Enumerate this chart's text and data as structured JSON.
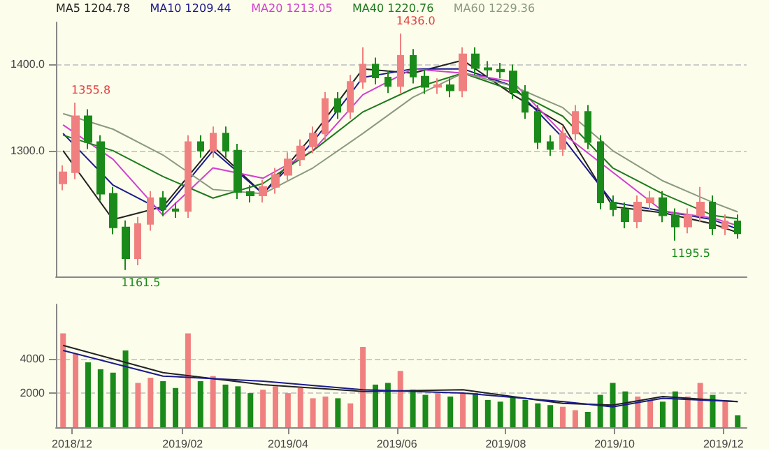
{
  "chart_data": [
    {
      "type": "candlestick",
      "x": [
        "2018-11-26",
        "2018-12-03",
        "2018-12-10",
        "2018-12-17",
        "2018-12-24",
        "2018-12-31",
        "2019-01-07",
        "2019-01-14",
        "2019-01-21",
        "2019-01-28",
        "2019-02-04",
        "2019-02-11",
        "2019-02-18",
        "2019-02-25",
        "2019-03-04",
        "2019-03-11",
        "2019-03-18",
        "2019-03-25",
        "2019-04-01",
        "2019-04-08",
        "2019-04-15",
        "2019-04-22",
        "2019-04-29",
        "2019-05-06",
        "2019-05-13",
        "2019-05-20",
        "2019-05-27",
        "2019-06-03",
        "2019-06-10",
        "2019-06-17",
        "2019-06-24",
        "2019-07-01",
        "2019-07-08",
        "2019-07-15",
        "2019-07-22",
        "2019-07-29",
        "2019-08-05",
        "2019-08-12",
        "2019-08-19",
        "2019-08-26",
        "2019-09-02",
        "2019-09-09",
        "2019-09-16",
        "2019-09-23",
        "2019-09-30",
        "2019-10-07",
        "2019-10-14",
        "2019-10-21",
        "2019-10-28",
        "2019-11-04",
        "2019-11-11",
        "2019-11-18",
        "2019-11-25",
        "2019-12-02",
        "2019-12-09"
      ],
      "ohlc": [
        [
          1262,
          1283,
          1254,
          1275
        ],
        [
          1275,
          1355.8,
          1267,
          1340
        ],
        [
          1340,
          1348,
          1302,
          1310
        ],
        [
          1310,
          1318,
          1242,
          1250
        ],
        [
          1250,
          1258,
          1203,
          1211
        ],
        [
          1211,
          1219,
          1161.5,
          1175
        ],
        [
          1175,
          1223,
          1167,
          1215
        ],
        [
          1215,
          1253,
          1207,
          1245
        ],
        [
          1245,
          1253,
          1224,
          1232
        ],
        [
          1232,
          1240,
          1222,
          1230
        ],
        [
          1230,
          1318,
          1222,
          1310
        ],
        [
          1310,
          1318,
          1292,
          1300
        ],
        [
          1300,
          1328,
          1292,
          1320
        ],
        [
          1320,
          1328,
          1292,
          1300
        ],
        [
          1300,
          1308,
          1244,
          1252
        ],
        [
          1252,
          1260,
          1240,
          1248
        ],
        [
          1248,
          1266,
          1240,
          1258
        ],
        [
          1258,
          1280,
          1250,
          1272
        ],
        [
          1272,
          1298,
          1264,
          1290
        ],
        [
          1290,
          1313,
          1282,
          1305
        ],
        [
          1305,
          1328,
          1297,
          1320
        ],
        [
          1320,
          1368,
          1312,
          1360
        ],
        [
          1360,
          1368,
          1337,
          1345
        ],
        [
          1345,
          1388,
          1337,
          1380
        ],
        [
          1380,
          1420,
          1372,
          1400
        ],
        [
          1400,
          1408,
          1377,
          1385
        ],
        [
          1385,
          1393,
          1367,
          1375
        ],
        [
          1375,
          1436,
          1367,
          1410
        ],
        [
          1410,
          1418,
          1378,
          1386
        ],
        [
          1386,
          1394,
          1366,
          1374
        ],
        [
          1374,
          1384,
          1366,
          1376
        ],
        [
          1376,
          1384,
          1362,
          1370
        ],
        [
          1370,
          1420,
          1362,
          1412
        ],
        [
          1412,
          1420,
          1388,
          1396
        ],
        [
          1396,
          1404,
          1386,
          1394
        ],
        [
          1394,
          1402,
          1384,
          1392
        ],
        [
          1392,
          1400,
          1360,
          1368
        ],
        [
          1368,
          1376,
          1337,
          1345
        ],
        [
          1345,
          1353,
          1302,
          1310
        ],
        [
          1310,
          1318,
          1294,
          1302
        ],
        [
          1302,
          1328,
          1294,
          1320
        ],
        [
          1320,
          1353,
          1312,
          1345
        ],
        [
          1345,
          1353,
          1302,
          1310
        ],
        [
          1310,
          1318,
          1232,
          1240
        ],
        [
          1240,
          1248,
          1224,
          1232
        ],
        [
          1232,
          1240,
          1210,
          1218
        ],
        [
          1218,
          1248,
          1210,
          1240
        ],
        [
          1240,
          1253,
          1232,
          1245
        ],
        [
          1245,
          1253,
          1217,
          1225
        ],
        [
          1225,
          1233,
          1195.5,
          1212
        ],
        [
          1212,
          1233,
          1204,
          1225
        ],
        [
          1225,
          1258,
          1217,
          1240
        ],
        [
          1240,
          1248,
          1202,
          1210
        ],
        [
          1210,
          1226,
          1202,
          1218
        ],
        [
          1218,
          1226,
          1198,
          1204
        ]
      ],
      "colors": [
        "#f08080",
        "#f08080",
        "#1a8a1a",
        "#1a8a1a",
        "#1a8a1a",
        "#1a8a1a",
        "#f08080",
        "#f08080",
        "#1a8a1a",
        "#1a8a1a",
        "#f08080",
        "#1a8a1a",
        "#f08080",
        "#1a8a1a",
        "#1a8a1a",
        "#1a8a1a",
        "#f08080",
        "#f08080",
        "#f08080",
        "#f08080",
        "#f08080",
        "#f08080",
        "#1a8a1a",
        "#f08080",
        "#f08080",
        "#1a8a1a",
        "#1a8a1a",
        "#f08080",
        "#1a8a1a",
        "#1a8a1a",
        "#f08080",
        "#1a8a1a",
        "#f08080",
        "#1a8a1a",
        "#1a8a1a",
        "#1a8a1a",
        "#1a8a1a",
        "#1a8a1a",
        "#1a8a1a",
        "#1a8a1a",
        "#f08080",
        "#f08080",
        "#1a8a1a",
        "#1a8a1a",
        "#1a8a1a",
        "#1a8a1a",
        "#f08080",
        "#f08080",
        "#1a8a1a",
        "#1a8a1a",
        "#f08080",
        "#f08080",
        "#1a8a1a",
        "#f08080",
        "#1a8a1a"
      ],
      "series": [
        {
          "type": "line",
          "name": "MA5 1204.78",
          "color": "#222222",
          "x": [
            "2018-11-26",
            "2018-12-24",
            "2019-01-21",
            "2019-02-18",
            "2019-03-18",
            "2019-04-15",
            "2019-05-13",
            "2019-06-10",
            "2019-07-08",
            "2019-08-05",
            "2019-09-02",
            "2019-09-30",
            "2019-10-28",
            "2019-11-25",
            "2019-12-09"
          ],
          "values": [
            1300,
            1220,
            1235,
            1305,
            1250,
            1318,
            1395,
            1390,
            1405,
            1365,
            1330,
            1235,
            1228,
            1215,
            1205
          ]
        },
        {
          "type": "line",
          "name": "MA10 1209.44",
          "color": "#1a1a8c",
          "x": [
            "2018-11-26",
            "2018-12-24",
            "2019-01-21",
            "2019-02-18",
            "2019-03-18",
            "2019-04-15",
            "2019-05-13",
            "2019-06-10",
            "2019-07-08",
            "2019-08-05",
            "2019-09-02",
            "2019-09-30",
            "2019-10-28",
            "2019-11-25",
            "2019-12-09"
          ],
          "values": [
            1320,
            1260,
            1230,
            1300,
            1250,
            1310,
            1385,
            1395,
            1395,
            1375,
            1315,
            1240,
            1230,
            1220,
            1209
          ]
        },
        {
          "type": "line",
          "name": "MA20 1213.05",
          "color": "#d040d0",
          "x": [
            "2018-11-26",
            "2018-12-24",
            "2019-01-21",
            "2019-02-18",
            "2019-03-18",
            "2019-04-15",
            "2019-05-13",
            "2019-06-10",
            "2019-07-08",
            "2019-08-05",
            "2019-09-02",
            "2019-09-30",
            "2019-10-28",
            "2019-11-25",
            "2019-12-09"
          ],
          "values": [
            1330,
            1290,
            1225,
            1280,
            1268,
            1300,
            1365,
            1395,
            1390,
            1380,
            1320,
            1275,
            1230,
            1222,
            1213
          ]
        },
        {
          "type": "line",
          "name": "MA40 1220.76",
          "color": "#1e7a1e",
          "x": [
            "2018-11-26",
            "2018-12-24",
            "2019-01-21",
            "2019-02-18",
            "2019-03-18",
            "2019-04-15",
            "2019-05-13",
            "2019-06-10",
            "2019-07-08",
            "2019-08-05",
            "2019-09-02",
            "2019-09-30",
            "2019-10-28",
            "2019-11-25",
            "2019-12-09"
          ],
          "values": [
            1318,
            1300,
            1270,
            1245,
            1262,
            1300,
            1345,
            1372,
            1390,
            1370,
            1340,
            1280,
            1250,
            1225,
            1221
          ]
        },
        {
          "type": "line",
          "name": "MA60 1229.36",
          "color": "#8a9a80",
          "x": [
            "2018-11-26",
            "2018-12-24",
            "2019-01-21",
            "2019-02-18",
            "2019-03-18",
            "2019-04-15",
            "2019-05-13",
            "2019-06-10",
            "2019-07-08",
            "2019-08-05",
            "2019-09-02",
            "2019-09-30",
            "2019-10-28",
            "2019-11-25",
            "2019-12-09"
          ],
          "values": [
            1343,
            1325,
            1295,
            1255,
            1250,
            1280,
            1320,
            1362,
            1390,
            1375,
            1350,
            1300,
            1265,
            1240,
            1229
          ]
        }
      ],
      "annotations": [
        {
          "text": "1355.8",
          "x": "2018-12-03",
          "y": 1355.8
        },
        {
          "text": "1161.5",
          "x": "2018-12-31",
          "y": 1161.5
        },
        {
          "text": "1436.0",
          "x": "2019-06-03",
          "y": 1436
        },
        {
          "text": "1195.5",
          "x": "2019-11-04",
          "y": 1195.5
        }
      ],
      "xlim": [
        "2018-11-22",
        "2019-12-14"
      ],
      "ylim": [
        1154,
        1449
      ],
      "yticks": [
        {
          "value": 1300,
          "label": "1300.0"
        },
        {
          "value": 1400,
          "label": "1400.0"
        }
      ],
      "tick_labels": "y",
      "grid": "y",
      "line_style": "solid",
      "marker": "none"
    },
    {
      "type": "bar",
      "x": [
        "2018-11-26",
        "2018-12-03",
        "2018-12-10",
        "2018-12-17",
        "2018-12-24",
        "2018-12-31",
        "2019-01-07",
        "2019-01-14",
        "2019-01-21",
        "2019-01-28",
        "2019-02-04",
        "2019-02-11",
        "2019-02-18",
        "2019-02-25",
        "2019-03-04",
        "2019-03-11",
        "2019-03-18",
        "2019-03-25",
        "2019-04-01",
        "2019-04-08",
        "2019-04-15",
        "2019-04-22",
        "2019-04-29",
        "2019-05-06",
        "2019-05-13",
        "2019-05-20",
        "2019-05-27",
        "2019-06-03",
        "2019-06-10",
        "2019-06-17",
        "2019-06-24",
        "2019-07-01",
        "2019-07-08",
        "2019-07-15",
        "2019-07-22",
        "2019-07-29",
        "2019-08-05",
        "2019-08-12",
        "2019-08-19",
        "2019-08-26",
        "2019-09-02",
        "2019-09-09",
        "2019-09-16",
        "2019-09-23",
        "2019-09-30",
        "2019-10-07",
        "2019-10-14",
        "2019-10-21",
        "2019-10-28",
        "2019-11-04",
        "2019-11-11",
        "2019-11-18",
        "2019-11-25",
        "2019-12-02",
        "2019-12-09"
      ],
      "values": [
        5500,
        4300,
        3800,
        3400,
        3200,
        4500,
        2600,
        2900,
        2700,
        2300,
        5500,
        2700,
        3000,
        2500,
        2400,
        2000,
        2200,
        2400,
        2000,
        2300,
        1700,
        1800,
        1700,
        1400,
        4700,
        2500,
        2600,
        3300,
        2200,
        1900,
        2000,
        1800,
        2000,
        2000,
        1600,
        1500,
        1800,
        1600,
        1400,
        1300,
        1200,
        1000,
        900,
        1900,
        2600,
        2100,
        1800,
        1600,
        1500,
        2100,
        1800,
        2600,
        1900,
        1500,
        700
      ],
      "colors": [
        "#f08080",
        "#f08080",
        "#1a8a1a",
        "#1a8a1a",
        "#1a8a1a",
        "#1a8a1a",
        "#f08080",
        "#f08080",
        "#1a8a1a",
        "#1a8a1a",
        "#f08080",
        "#1a8a1a",
        "#f08080",
        "#1a8a1a",
        "#1a8a1a",
        "#1a8a1a",
        "#f08080",
        "#f08080",
        "#f08080",
        "#f08080",
        "#f08080",
        "#f08080",
        "#1a8a1a",
        "#f08080",
        "#f08080",
        "#1a8a1a",
        "#1a8a1a",
        "#f08080",
        "#1a8a1a",
        "#1a8a1a",
        "#f08080",
        "#1a8a1a",
        "#f08080",
        "#1a8a1a",
        "#1a8a1a",
        "#1a8a1a",
        "#1a8a1a",
        "#1a8a1a",
        "#1a8a1a",
        "#1a8a1a",
        "#f08080",
        "#f08080",
        "#1a8a1a",
        "#1a8a1a",
        "#1a8a1a",
        "#1a8a1a",
        "#f08080",
        "#f08080",
        "#1a8a1a",
        "#1a8a1a",
        "#f08080",
        "#f08080",
        "#1a8a1a",
        "#f08080",
        "#1a8a1a"
      ],
      "series": [
        {
          "type": "line",
          "color": "#222222",
          "x": [
            "2018-11-26",
            "2019-01-21",
            "2019-03-18",
            "2019-05-13",
            "2019-07-08",
            "2019-09-02",
            "2019-09-30",
            "2019-10-28",
            "2019-12-09"
          ],
          "values": [
            4800,
            3200,
            2500,
            2100,
            2200,
            1400,
            1300,
            1800,
            1500
          ]
        },
        {
          "type": "line",
          "color": "#1a1a8c",
          "x": [
            "2018-11-26",
            "2019-01-21",
            "2019-03-18",
            "2019-05-13",
            "2019-07-08",
            "2019-09-02",
            "2019-09-30",
            "2019-10-28",
            "2019-12-09"
          ],
          "values": [
            4500,
            3000,
            2700,
            2200,
            2000,
            1500,
            1200,
            1700,
            1500
          ]
        }
      ],
      "xlim": [
        "2018-11-22",
        "2019-12-14"
      ],
      "ylim": [
        0,
        7200
      ],
      "yticks": [
        2000,
        4000
      ],
      "xticks": [
        {
          "value": "2018-12-01",
          "label": "2018/12"
        },
        {
          "value": "2019-02-01",
          "label": "2019/02"
        },
        {
          "value": "2019-04-01",
          "label": "2019/04"
        },
        {
          "value": "2019-06-01",
          "label": "2019/06"
        },
        {
          "value": "2019-08-01",
          "label": "2019/08"
        },
        {
          "value": "2019-10-01",
          "label": "2019/10"
        },
        {
          "value": "2019-12-01",
          "label": "2019/12"
        }
      ],
      "grid": "y",
      "line_style": "solid",
      "marker": "none"
    }
  ]
}
